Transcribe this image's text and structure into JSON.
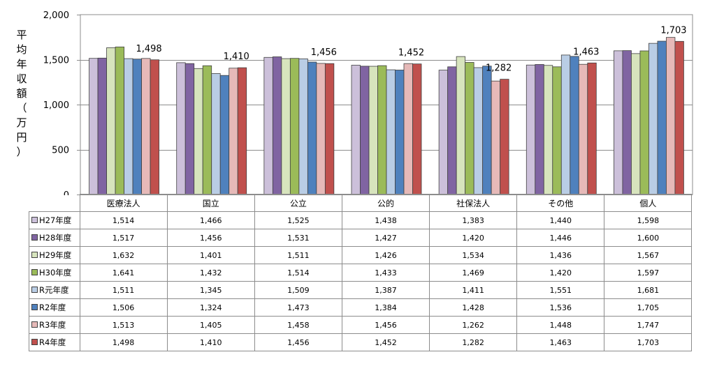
{
  "chart_data": {
    "type": "bar",
    "title": "",
    "ylabel_chars": [
      "平",
      "均",
      "年",
      "収",
      "額",
      "（",
      "万",
      "円",
      "）"
    ],
    "ylim": [
      0,
      2000
    ],
    "yticks": [
      0,
      500,
      1000,
      1500,
      2000
    ],
    "ytick_labels": [
      "0",
      "500",
      "1,000",
      "1,500",
      "2,000"
    ],
    "categories": [
      "医療法人",
      "国立",
      "公立",
      "公的",
      "社保法人",
      "その他",
      "個人"
    ],
    "series": [
      {
        "name": "H27年度",
        "color": "#ccc0da",
        "values": [
          1514,
          1466,
          1525,
          1438,
          1383,
          1440,
          1598
        ],
        "display": [
          "1,514",
          "1,466",
          "1,525",
          "1,438",
          "1,383",
          "1,440",
          "1,598"
        ]
      },
      {
        "name": "H28年度",
        "color": "#8064a2",
        "values": [
          1517,
          1456,
          1531,
          1427,
          1420,
          1446,
          1600
        ],
        "display": [
          "1,517",
          "1,456",
          "1,531",
          "1,427",
          "1,420",
          "1,446",
          "1,600"
        ]
      },
      {
        "name": "H29年度",
        "color": "#d7e4bd",
        "values": [
          1632,
          1401,
          1511,
          1426,
          1534,
          1436,
          1567
        ],
        "display": [
          "1,632",
          "1,401",
          "1,511",
          "1,426",
          "1,534",
          "1,436",
          "1,567"
        ]
      },
      {
        "name": "H30年度",
        "color": "#9bbb59",
        "values": [
          1641,
          1432,
          1514,
          1433,
          1469,
          1420,
          1597
        ],
        "display": [
          "1,641",
          "1,432",
          "1,514",
          "1,433",
          "1,469",
          "1,420",
          "1,597"
        ]
      },
      {
        "name": "R元年度",
        "color": "#b9cde5",
        "values": [
          1511,
          1345,
          1509,
          1387,
          1411,
          1551,
          1681
        ],
        "display": [
          "1,511",
          "1,345",
          "1,509",
          "1,387",
          "1,411",
          "1,551",
          "1,681"
        ]
      },
      {
        "name": "R2年度",
        "color": "#4f81bd",
        "values": [
          1506,
          1324,
          1473,
          1384,
          1428,
          1536,
          1705
        ],
        "display": [
          "1,506",
          "1,324",
          "1,473",
          "1,384",
          "1,428",
          "1,536",
          "1,705"
        ]
      },
      {
        "name": "R3年度",
        "color": "#e6b9b8",
        "values": [
          1513,
          1405,
          1458,
          1456,
          1262,
          1448,
          1747
        ],
        "display": [
          "1,513",
          "1,405",
          "1,458",
          "1,456",
          "1,262",
          "1,448",
          "1,747"
        ]
      },
      {
        "name": "R4年度",
        "color": "#c0504d",
        "values": [
          1498,
          1410,
          1456,
          1452,
          1282,
          1463,
          1703
        ],
        "display": [
          "1,498",
          "1,410",
          "1,456",
          "1,452",
          "1,282",
          "1,463",
          "1,703"
        ]
      }
    ],
    "data_labels": {
      "series": "R4年度",
      "labels": [
        "1,498",
        "1,410",
        "1,456",
        "1,452",
        "1,282",
        "1,463",
        "1,703"
      ]
    },
    "grid": true,
    "legend": "data-table"
  }
}
